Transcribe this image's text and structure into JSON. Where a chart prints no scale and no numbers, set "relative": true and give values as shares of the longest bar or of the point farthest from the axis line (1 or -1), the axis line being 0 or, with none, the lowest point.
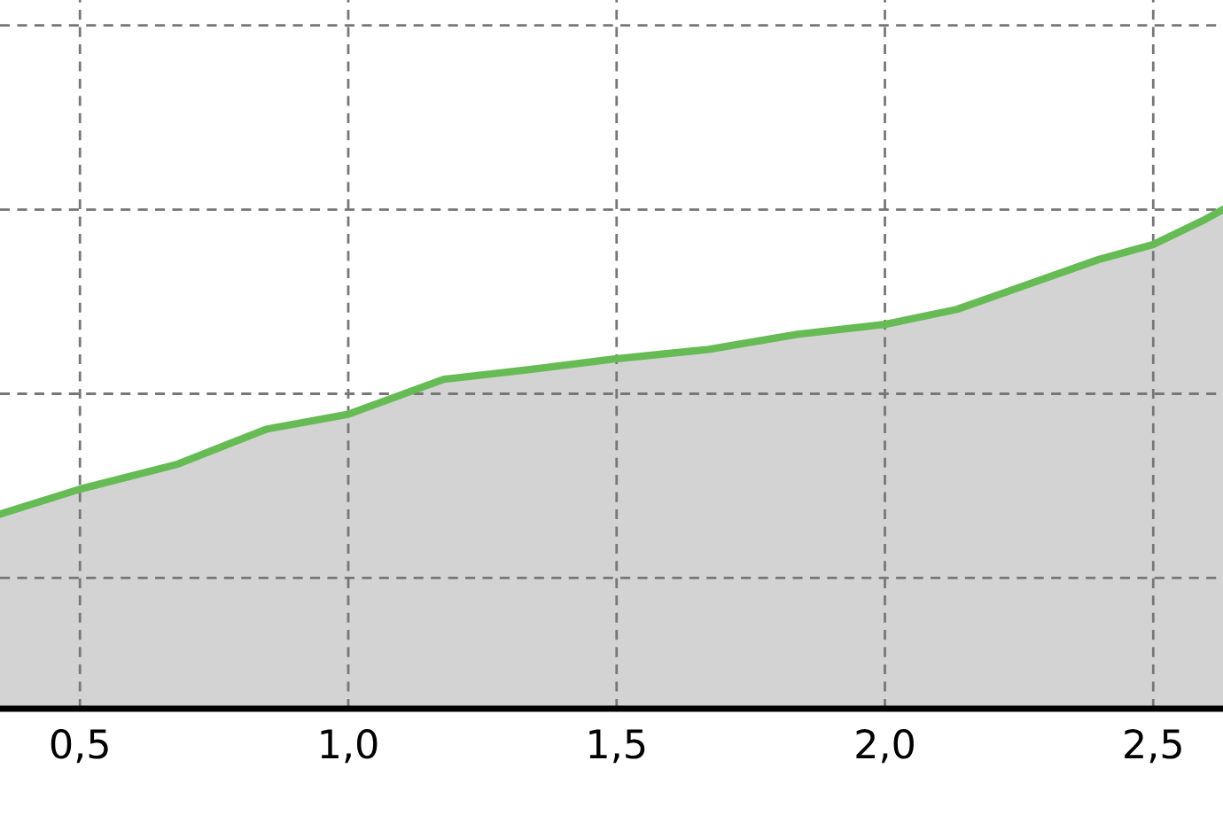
{
  "chart_data": {
    "type": "area",
    "relative": true,
    "x": [
      0.351,
      0.5,
      0.682,
      0.847,
      1.0,
      1.178,
      1.342,
      1.49,
      1.672,
      1.837,
      2.0,
      2.134,
      2.266,
      2.398,
      2.5,
      2.596,
      2.63
    ],
    "series": [
      {
        "color": "#66bb55",
        "values": [
          0.39,
          0.44,
          0.49,
          0.56,
          0.59,
          0.66,
          0.68,
          0.7,
          0.72,
          0.75,
          0.77,
          0.8,
          0.85,
          0.9,
          0.93,
          0.98,
          1.0
        ]
      }
    ],
    "xlim": [
      0.351,
      2.63
    ],
    "xticks": [
      {
        "value": 0.5,
        "label": "0,5"
      },
      {
        "value": 1.0,
        "label": "1,0"
      },
      {
        "value": 1.5,
        "label": "1,5"
      },
      {
        "value": 2.0,
        "label": "2,0"
      },
      {
        "value": 2.5,
        "label": "2,5"
      }
    ],
    "grid": true,
    "tick_labels": "x"
  }
}
